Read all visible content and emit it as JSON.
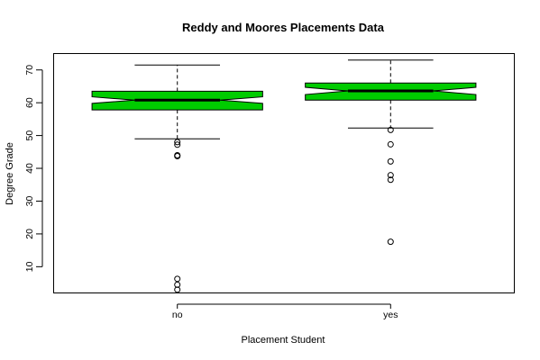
{
  "chart_data": {
    "type": "boxplot",
    "title": "Reddy and Moores Placements Data",
    "xlabel": "Placement Student",
    "ylabel": "Degree Grade",
    "categories": [
      "no",
      "yes"
    ],
    "ylim": [
      2,
      75
    ],
    "yticks": [
      10,
      20,
      30,
      40,
      50,
      60,
      70
    ],
    "grid": false,
    "legend": "none",
    "notched": true,
    "box_color": "#00cc00",
    "boxes": [
      {
        "category": "no",
        "whisker_low": 49,
        "q1": 57.8,
        "median": 60.8,
        "q3": 63.5,
        "whisker_high": 71.5,
        "notch_low": 59.8,
        "notch_high": 61.8,
        "outliers": [
          48,
          47.2,
          44,
          43.7,
          6.3,
          4.5,
          3
        ]
      },
      {
        "category": "yes",
        "whisker_low": 52.3,
        "q1": 60.8,
        "median": 63.6,
        "q3": 66,
        "whisker_high": 73,
        "notch_low": 62.5,
        "notch_high": 64.7,
        "outliers": [
          51.7,
          47.3,
          42.1,
          37.9,
          36.5,
          17.6
        ]
      }
    ]
  }
}
